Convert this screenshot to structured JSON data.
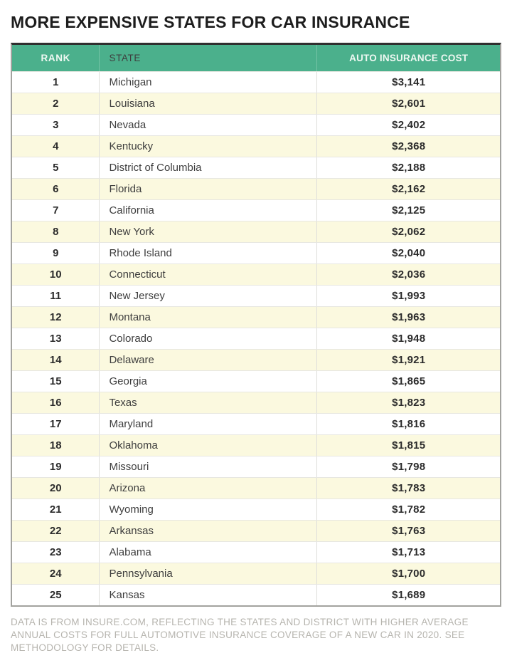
{
  "colors": {
    "header_bg": "#4bb08c",
    "header_text": "#eef8f2",
    "row_alt_bg": "#fbf9df",
    "row_bg": "#ffffff",
    "title_text": "#1d1d1d",
    "footnote_text": "#b6b4ae",
    "table_border_top": "#2f2f2f",
    "table_border_side": "#a3a39f"
  },
  "chart_data": {
    "type": "table",
    "title": "MORE EXPENSIVE STATES FOR CAR INSURANCE",
    "columns": [
      "RANK",
      "STATE",
      "AUTO INSURANCE COST"
    ],
    "caption": "Data is from Insure.com, reflecting the states and district with higher average annual costs for full automotive insurance coverage of a new car in 2020. See methodology for details.",
    "rows": [
      {
        "rank": "1",
        "state": "Michigan",
        "cost": "$3,141",
        "cost_value": 3141
      },
      {
        "rank": "2",
        "state": "Louisiana",
        "cost": "$2,601",
        "cost_value": 2601
      },
      {
        "rank": "3",
        "state": "Nevada",
        "cost": "$2,402",
        "cost_value": 2402
      },
      {
        "rank": "4",
        "state": "Kentucky",
        "cost": "$2,368",
        "cost_value": 2368
      },
      {
        "rank": "5",
        "state": "District of Columbia",
        "cost": "$2,188",
        "cost_value": 2188
      },
      {
        "rank": "6",
        "state": "Florida",
        "cost": "$2,162",
        "cost_value": 2162
      },
      {
        "rank": "7",
        "state": "California",
        "cost": "$2,125",
        "cost_value": 2125
      },
      {
        "rank": "8",
        "state": "New York",
        "cost": "$2,062",
        "cost_value": 2062
      },
      {
        "rank": "9",
        "state": "Rhode Island",
        "cost": "$2,040",
        "cost_value": 2040
      },
      {
        "rank": "10",
        "state": "Connecticut",
        "cost": "$2,036",
        "cost_value": 2036
      },
      {
        "rank": "11",
        "state": "New Jersey",
        "cost": "$1,993",
        "cost_value": 1993
      },
      {
        "rank": "12",
        "state": "Montana",
        "cost": "$1,963",
        "cost_value": 1963
      },
      {
        "rank": "13",
        "state": "Colorado",
        "cost": "$1,948",
        "cost_value": 1948
      },
      {
        "rank": "14",
        "state": "Delaware",
        "cost": "$1,921",
        "cost_value": 1921
      },
      {
        "rank": "15",
        "state": "Georgia",
        "cost": "$1,865",
        "cost_value": 1865
      },
      {
        "rank": "16",
        "state": "Texas",
        "cost": "$1,823",
        "cost_value": 1823
      },
      {
        "rank": "17",
        "state": "Maryland",
        "cost": "$1,816",
        "cost_value": 1816
      },
      {
        "rank": "18",
        "state": "Oklahoma",
        "cost": "$1,815",
        "cost_value": 1815
      },
      {
        "rank": "19",
        "state": "Missouri",
        "cost": "$1,798",
        "cost_value": 1798
      },
      {
        "rank": "20",
        "state": "Arizona",
        "cost": "$1,783",
        "cost_value": 1783
      },
      {
        "rank": "21",
        "state": "Wyoming",
        "cost": "$1,782",
        "cost_value": 1782
      },
      {
        "rank": "22",
        "state": "Arkansas",
        "cost": "$1,763",
        "cost_value": 1763
      },
      {
        "rank": "23",
        "state": "Alabama",
        "cost": "$1,713",
        "cost_value": 1713
      },
      {
        "rank": "24",
        "state": "Pennsylvania",
        "cost": "$1,700",
        "cost_value": 1700
      },
      {
        "rank": "25",
        "state": "Kansas",
        "cost": "$1,689",
        "cost_value": 1689
      }
    ],
    "footnote_display": "DATA IS FROM INSURE.COM, REFLECTING THE STATES AND DISTRICT WITH HIGHER AVERAGE ANNUAL COSTS FOR FULL AUTOMOTIVE INSURANCE COVERAGE OF A NEW CAR IN 2020. SEE METHODOLOGY FOR DETAILS."
  }
}
